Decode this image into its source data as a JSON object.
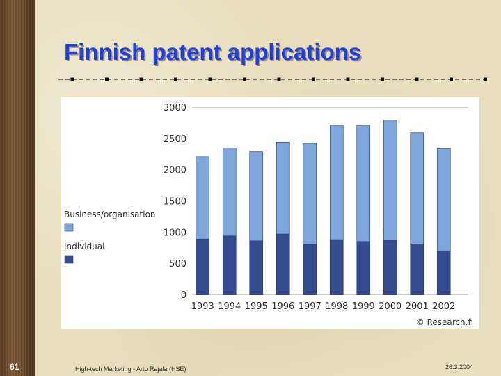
{
  "slide": {
    "title": "Finnish patent applications",
    "footer_number": "61",
    "footer_center": "High-tech Marketing - Arto Rajala (HSE)",
    "footer_date": "26.3.2004"
  },
  "chart_data": {
    "type": "bar",
    "stacked": true,
    "categories": [
      "1993",
      "1994",
      "1995",
      "1996",
      "1997",
      "1998",
      "1999",
      "2000",
      "2001",
      "2002"
    ],
    "series": [
      {
        "name": "Individual",
        "color": "#344c8f",
        "values": [
          890,
          940,
          860,
          970,
          800,
          880,
          850,
          870,
          810,
          700
        ]
      },
      {
        "name": "Business/organisation",
        "color": "#7ea6da",
        "values": [
          1320,
          1410,
          1430,
          1470,
          1620,
          1830,
          1860,
          1920,
          1780,
          1640
        ]
      }
    ],
    "ylim": [
      0,
      3000
    ],
    "yticks": [
      0,
      500,
      1000,
      1500,
      2000,
      2500,
      3000
    ],
    "xlabel": "",
    "ylabel": "",
    "legend_position": "left",
    "grid": false,
    "source_text": "© Research.fi"
  }
}
